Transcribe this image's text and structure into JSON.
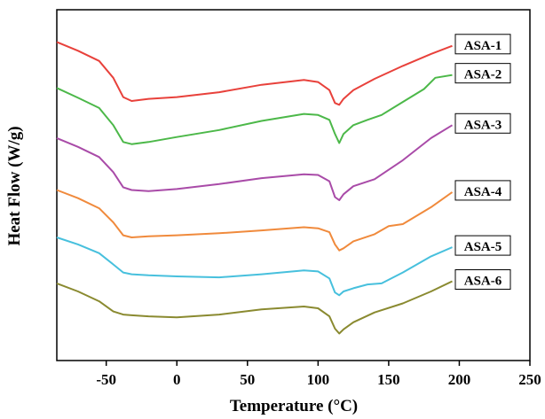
{
  "chart_data": {
    "type": "line",
    "xlabel": "Temperature (°C)",
    "ylabel": "Heat Flow (W/g)",
    "xlim": [
      -85,
      250
    ],
    "ylim": [
      0,
      100
    ],
    "x_ticks": [
      -50,
      0,
      50,
      100,
      150,
      200,
      250
    ],
    "x_tick_labels": [
      "-50",
      "0",
      "50",
      "100",
      "150",
      "200",
      "250"
    ],
    "grid": false,
    "series": [
      {
        "name": "ASA-1",
        "color": "#e8413b",
        "x": [
          -85,
          -70,
          -55,
          -45,
          -38,
          -32,
          -20,
          0,
          30,
          60,
          90,
          100,
          108,
          112,
          115,
          118,
          125,
          140,
          160,
          180,
          195
        ],
        "y": [
          90.8,
          88.3,
          85.4,
          80.6,
          75.1,
          74.0,
          74.6,
          75.1,
          76.5,
          78.6,
          80.0,
          79.4,
          77.1,
          73.4,
          72.9,
          74.6,
          77.1,
          80.3,
          84.0,
          87.4,
          89.7
        ]
      },
      {
        "name": "ASA-2",
        "color": "#4cb849",
        "x": [
          -85,
          -70,
          -55,
          -45,
          -38,
          -32,
          -20,
          0,
          30,
          60,
          90,
          100,
          108,
          112,
          115,
          118,
          125,
          135,
          145,
          160,
          175,
          183,
          195
        ],
        "y": [
          77.7,
          74.9,
          72.0,
          67.1,
          62.3,
          61.7,
          62.3,
          63.7,
          65.7,
          68.3,
          70.3,
          70.0,
          68.6,
          64.6,
          62.0,
          64.6,
          67.1,
          68.6,
          70.0,
          73.7,
          77.4,
          80.6,
          81.4
        ]
      },
      {
        "name": "ASA-3",
        "color": "#a94ba8",
        "x": [
          -85,
          -70,
          -55,
          -45,
          -38,
          -32,
          -20,
          0,
          30,
          60,
          90,
          100,
          108,
          112,
          115,
          118,
          125,
          140,
          160,
          180,
          195
        ],
        "y": [
          63.4,
          60.9,
          58.0,
          53.7,
          49.4,
          48.6,
          48.3,
          48.9,
          50.3,
          52.0,
          53.1,
          52.9,
          51.1,
          46.6,
          45.7,
          47.4,
          49.7,
          51.7,
          57.1,
          63.4,
          67.1
        ]
      },
      {
        "name": "ASA-4",
        "color": "#f08a3c",
        "x": [
          -85,
          -70,
          -55,
          -45,
          -38,
          -32,
          -20,
          0,
          30,
          60,
          90,
          100,
          108,
          112,
          115,
          118,
          125,
          140,
          150,
          160,
          180,
          195
        ],
        "y": [
          48.6,
          46.3,
          43.4,
          39.4,
          35.7,
          35.1,
          35.4,
          35.7,
          36.3,
          37.1,
          38.0,
          37.7,
          36.6,
          33.1,
          31.4,
          32.0,
          34.0,
          36.0,
          38.3,
          38.9,
          43.7,
          48.0
        ]
      },
      {
        "name": "ASA-5",
        "color": "#47c0dd",
        "x": [
          -85,
          -70,
          -55,
          -45,
          -38,
          -32,
          -20,
          0,
          30,
          60,
          90,
          100,
          108,
          112,
          115,
          118,
          125,
          135,
          145,
          160,
          180,
          195
        ],
        "y": [
          35.1,
          33.1,
          30.6,
          27.4,
          25.1,
          24.6,
          24.3,
          24.0,
          23.7,
          24.6,
          25.7,
          25.4,
          23.4,
          19.4,
          18.6,
          19.7,
          20.6,
          21.7,
          22.0,
          25.1,
          29.7,
          32.3
        ]
      },
      {
        "name": "ASA-6",
        "color": "#8a8a30",
        "x": [
          -85,
          -70,
          -55,
          -45,
          -38,
          -32,
          -20,
          0,
          30,
          60,
          90,
          100,
          108,
          112,
          115,
          118,
          125,
          140,
          160,
          180,
          195
        ],
        "y": [
          22.0,
          19.7,
          16.9,
          14.0,
          13.1,
          12.9,
          12.6,
          12.3,
          13.1,
          14.6,
          15.4,
          14.9,
          12.6,
          9.1,
          7.7,
          8.9,
          10.9,
          13.7,
          16.3,
          19.7,
          22.6
        ]
      }
    ]
  }
}
